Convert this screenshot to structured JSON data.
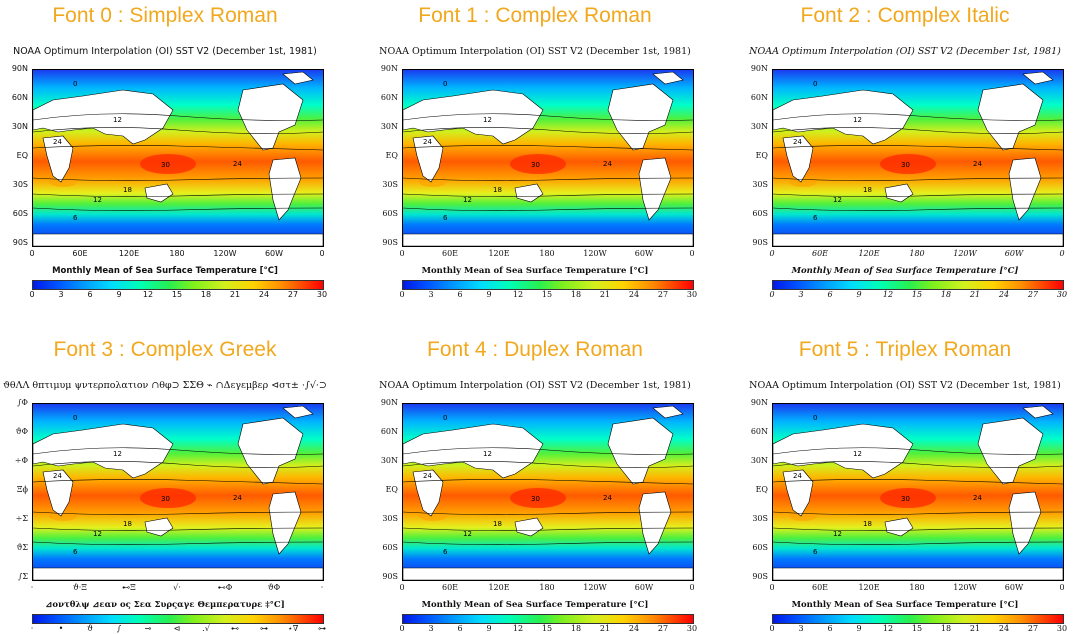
{
  "plot_title": "NOAA Optimum Interpolation (OI) SST V2 (December 1st, 1981)",
  "unit_label": "Monthly Mean of Sea Surface Temperature [°C]",
  "y_ticks": [
    "90N",
    "60N",
    "30N",
    "EQ",
    "30S",
    "60S",
    "90S"
  ],
  "x_ticks": [
    "0",
    "60E",
    "120E",
    "180",
    "120W",
    "60W",
    "0"
  ],
  "colorbar_ticks": [
    "0",
    "3",
    "6",
    "9",
    "12",
    "15",
    "18",
    "21",
    "24",
    "27",
    "30"
  ],
  "greek": {
    "plot_title": "ϑθΛΛ θπτιμυμ ψντερπολατιον ∩θφ⊃ ΣΣΘ ⌁ ∩Δεγεμβερ ⊲στ± ·∫√·⊃",
    "unit_label": "⊿οντθλψ ⊿εαν ος Σεα Συρςαγε Θεμπερατυρε ‡°C]",
    "y_ticks": [
      "∫Φ",
      "ϑΦ",
      "÷Φ",
      "Ξϕ",
      "÷Σ",
      "ϑΣ",
      "∫Σ"
    ],
    "x_ticks": [
      "·",
      "ϑ·Ξ",
      "⊷Ξ",
      "√·",
      "⊷Φ",
      "ϑΦ",
      "·"
    ],
    "colorbar_ticks": [
      "·",
      "•",
      "ϑ",
      "∫",
      "⊸",
      "⊲",
      ".√",
      "⊷",
      "⊶",
      "⋆∇",
      "⊶"
    ]
  },
  "panels": [
    {
      "heading": "Font 0 : Simplex Roman"
    },
    {
      "heading": "Font 1 : Complex Roman"
    },
    {
      "heading": "Font 2 : Complex Italic"
    },
    {
      "heading": "Font 3 : Complex Greek"
    },
    {
      "heading": "Font 4 : Duplex Roman"
    },
    {
      "heading": "Font 5 : Triplex Roman"
    }
  ],
  "map_labels": [
    "0",
    "6",
    "12",
    "18",
    "24",
    "30"
  ],
  "colormap": {
    "cold": "#0019e6",
    "mid": "#28f050",
    "warm": "#ff0000",
    "land": "#ffffff"
  }
}
